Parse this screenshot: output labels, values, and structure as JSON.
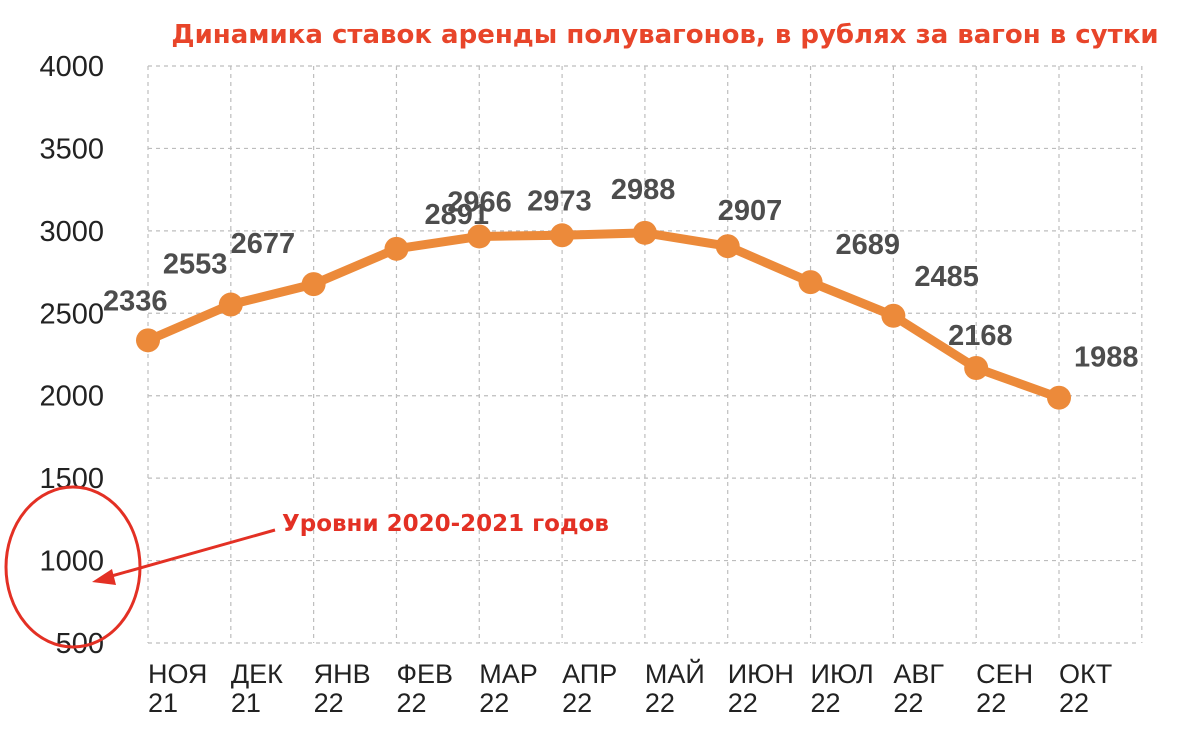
{
  "chart_data": {
    "type": "line",
    "title": "Динамика ставок аренды полувагонов, в рублях за вагон в сутки",
    "categories": [
      [
        "НОЯ",
        "21"
      ],
      [
        "ДЕК",
        "21"
      ],
      [
        "ЯНВ",
        "22"
      ],
      [
        "ФЕВ",
        "22"
      ],
      [
        "МАР",
        "22"
      ],
      [
        "АПР",
        "22"
      ],
      [
        "МАЙ",
        "22"
      ],
      [
        "ИЮН",
        "22"
      ],
      [
        "ИЮЛ",
        "22"
      ],
      [
        "АВГ",
        "22"
      ],
      [
        "СЕН",
        "22"
      ],
      [
        "ОКТ",
        "22"
      ]
    ],
    "series": [
      {
        "values": [
          2336,
          2553,
          2677,
          2891,
          2966,
          2973,
          2988,
          2907,
          2689,
          2485,
          2168,
          1988
        ],
        "labels": [
          "2336",
          "2553",
          "2677",
          "2891",
          "2966",
          "2973",
          "2988",
          "2907",
          "2689",
          "2485",
          "2168",
          "1988"
        ]
      }
    ],
    "ylim": [
      500,
      4000
    ],
    "yticks": [
      "4000",
      "3500",
      "3000",
      "2500",
      "2000",
      "1500",
      "1000",
      "500"
    ],
    "grid": true,
    "annotation": {
      "text": "Уровни 2020-2021 годов",
      "target_range": [
        500,
        1000
      ]
    },
    "colors": {
      "line": "#ec8a3a",
      "title": "#e8452a",
      "annotation": "#e33024",
      "grid": "#bdbdbd",
      "labels": "#4d4d4d"
    }
  }
}
